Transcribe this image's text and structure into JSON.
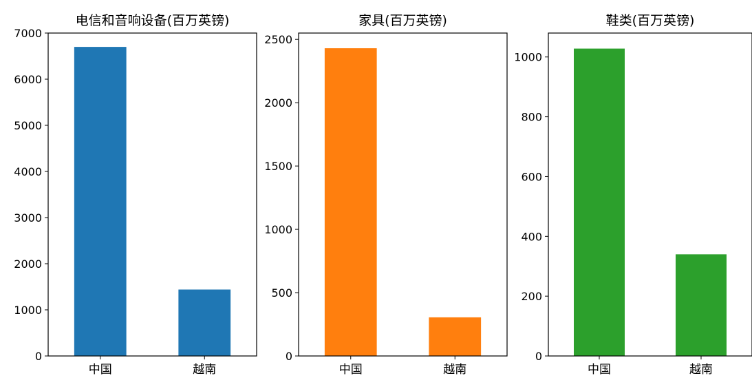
{
  "chart_data": [
    {
      "type": "bar",
      "title": "电信和音响设备(百万英镑)",
      "categories": [
        "中国",
        "越南"
      ],
      "values": [
        6700,
        1440
      ],
      "ylim": [
        0,
        7000
      ],
      "yticks": [
        0,
        1000,
        2000,
        3000,
        4000,
        5000,
        6000,
        7000
      ],
      "color": "#1f77b4",
      "xlabel": "",
      "ylabel": "",
      "grid": false
    },
    {
      "type": "bar",
      "title": "家具(百万英镑)",
      "categories": [
        "中国",
        "越南"
      ],
      "values": [
        2430,
        305
      ],
      "ylim": [
        0,
        2550
      ],
      "yticks": [
        0,
        500,
        1000,
        1500,
        2000,
        2500
      ],
      "color": "#ff7f0e",
      "xlabel": "",
      "ylabel": "",
      "grid": false
    },
    {
      "type": "bar",
      "title": "鞋类(百万英镑)",
      "categories": [
        "中国",
        "越南"
      ],
      "values": [
        1028,
        340
      ],
      "ylim": [
        0,
        1080
      ],
      "yticks": [
        0,
        200,
        400,
        600,
        800,
        1000
      ],
      "color": "#2ca02c",
      "xlabel": "",
      "ylabel": "",
      "grid": false
    }
  ]
}
